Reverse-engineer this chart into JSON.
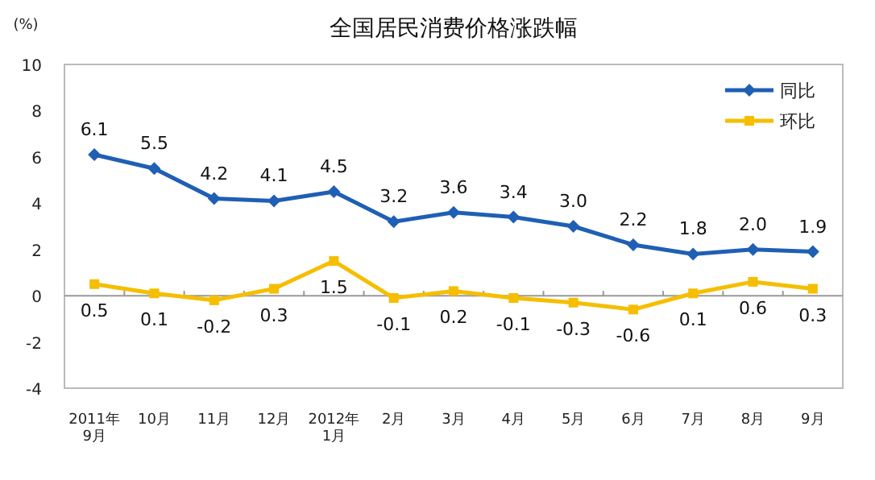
{
  "chart_data": {
    "type": "line",
    "title": "全国居民消费价格涨跌幅",
    "ylabel": "(%)",
    "categories": [
      "2011年\n9月",
      "10月",
      "11月",
      "12月",
      "2012年\n1月",
      "2月",
      "3月",
      "4月",
      "5月",
      "6月",
      "7月",
      "8月",
      "9月"
    ],
    "series": [
      {
        "name": "同比",
        "color": "#1f5fb4",
        "marker": "diamond",
        "values": [
          6.1,
          5.5,
          4.2,
          4.1,
          4.5,
          3.2,
          3.6,
          3.4,
          3.0,
          2.2,
          1.8,
          2.0,
          1.9
        ],
        "value_labels": [
          "6.1",
          "5.5",
          "4.2",
          "4.1",
          "4.5",
          "3.2",
          "3.6",
          "3.4",
          "3.0",
          "2.2",
          "1.8",
          "2.0",
          "1.9"
        ]
      },
      {
        "name": "环比",
        "color": "#f5be00",
        "marker": "square",
        "values": [
          0.5,
          0.1,
          -0.2,
          0.3,
          1.5,
          -0.1,
          0.2,
          -0.1,
          -0.3,
          -0.6,
          0.1,
          0.6,
          0.3
        ],
        "value_labels": [
          "0.5",
          "0.1",
          "-0.2",
          "0.3",
          "1.5",
          "-0.1",
          "0.2",
          "-0.1",
          "-0.3",
          "-0.6",
          "0.1",
          "0.6",
          "0.3"
        ]
      }
    ],
    "ylim": [
      -4,
      10
    ],
    "yticks": [
      -4,
      -2,
      0,
      2,
      4,
      6,
      8,
      10
    ],
    "legend": "top right"
  }
}
